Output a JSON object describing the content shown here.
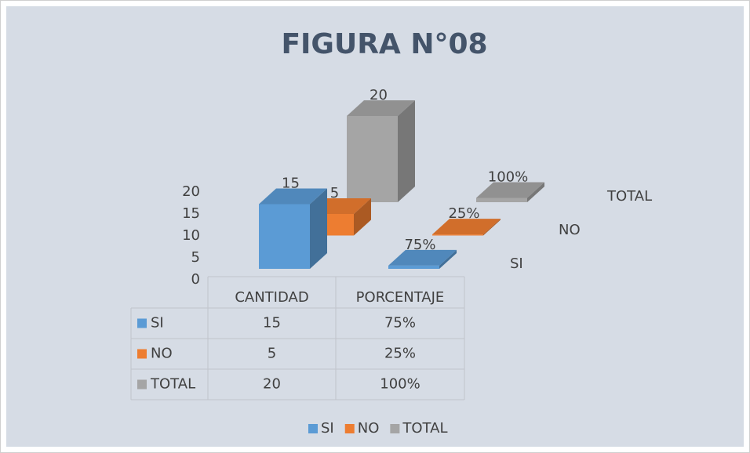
{
  "chart_data": {
    "type": "bar3d",
    "title": "FIGURA N°08",
    "categories": [
      "CANTIDAD",
      "PORCENTAJE"
    ],
    "series": [
      {
        "name": "SI",
        "color": "#5b9bd5",
        "values": [
          15,
          0.75
        ],
        "value_labels": [
          "15",
          "75%"
        ]
      },
      {
        "name": "NO",
        "color": "#ed7d31",
        "values": [
          5,
          0.25
        ],
        "value_labels": [
          "5",
          "25%"
        ]
      },
      {
        "name": "TOTAL",
        "color": "#a5a5a5",
        "values": [
          20,
          1
        ],
        "value_labels": [
          "20",
          "100%"
        ]
      }
    ],
    "ylim": [
      0,
      20
    ],
    "yticks": [
      0,
      5,
      10,
      15,
      20
    ],
    "legend": "bottom"
  }
}
